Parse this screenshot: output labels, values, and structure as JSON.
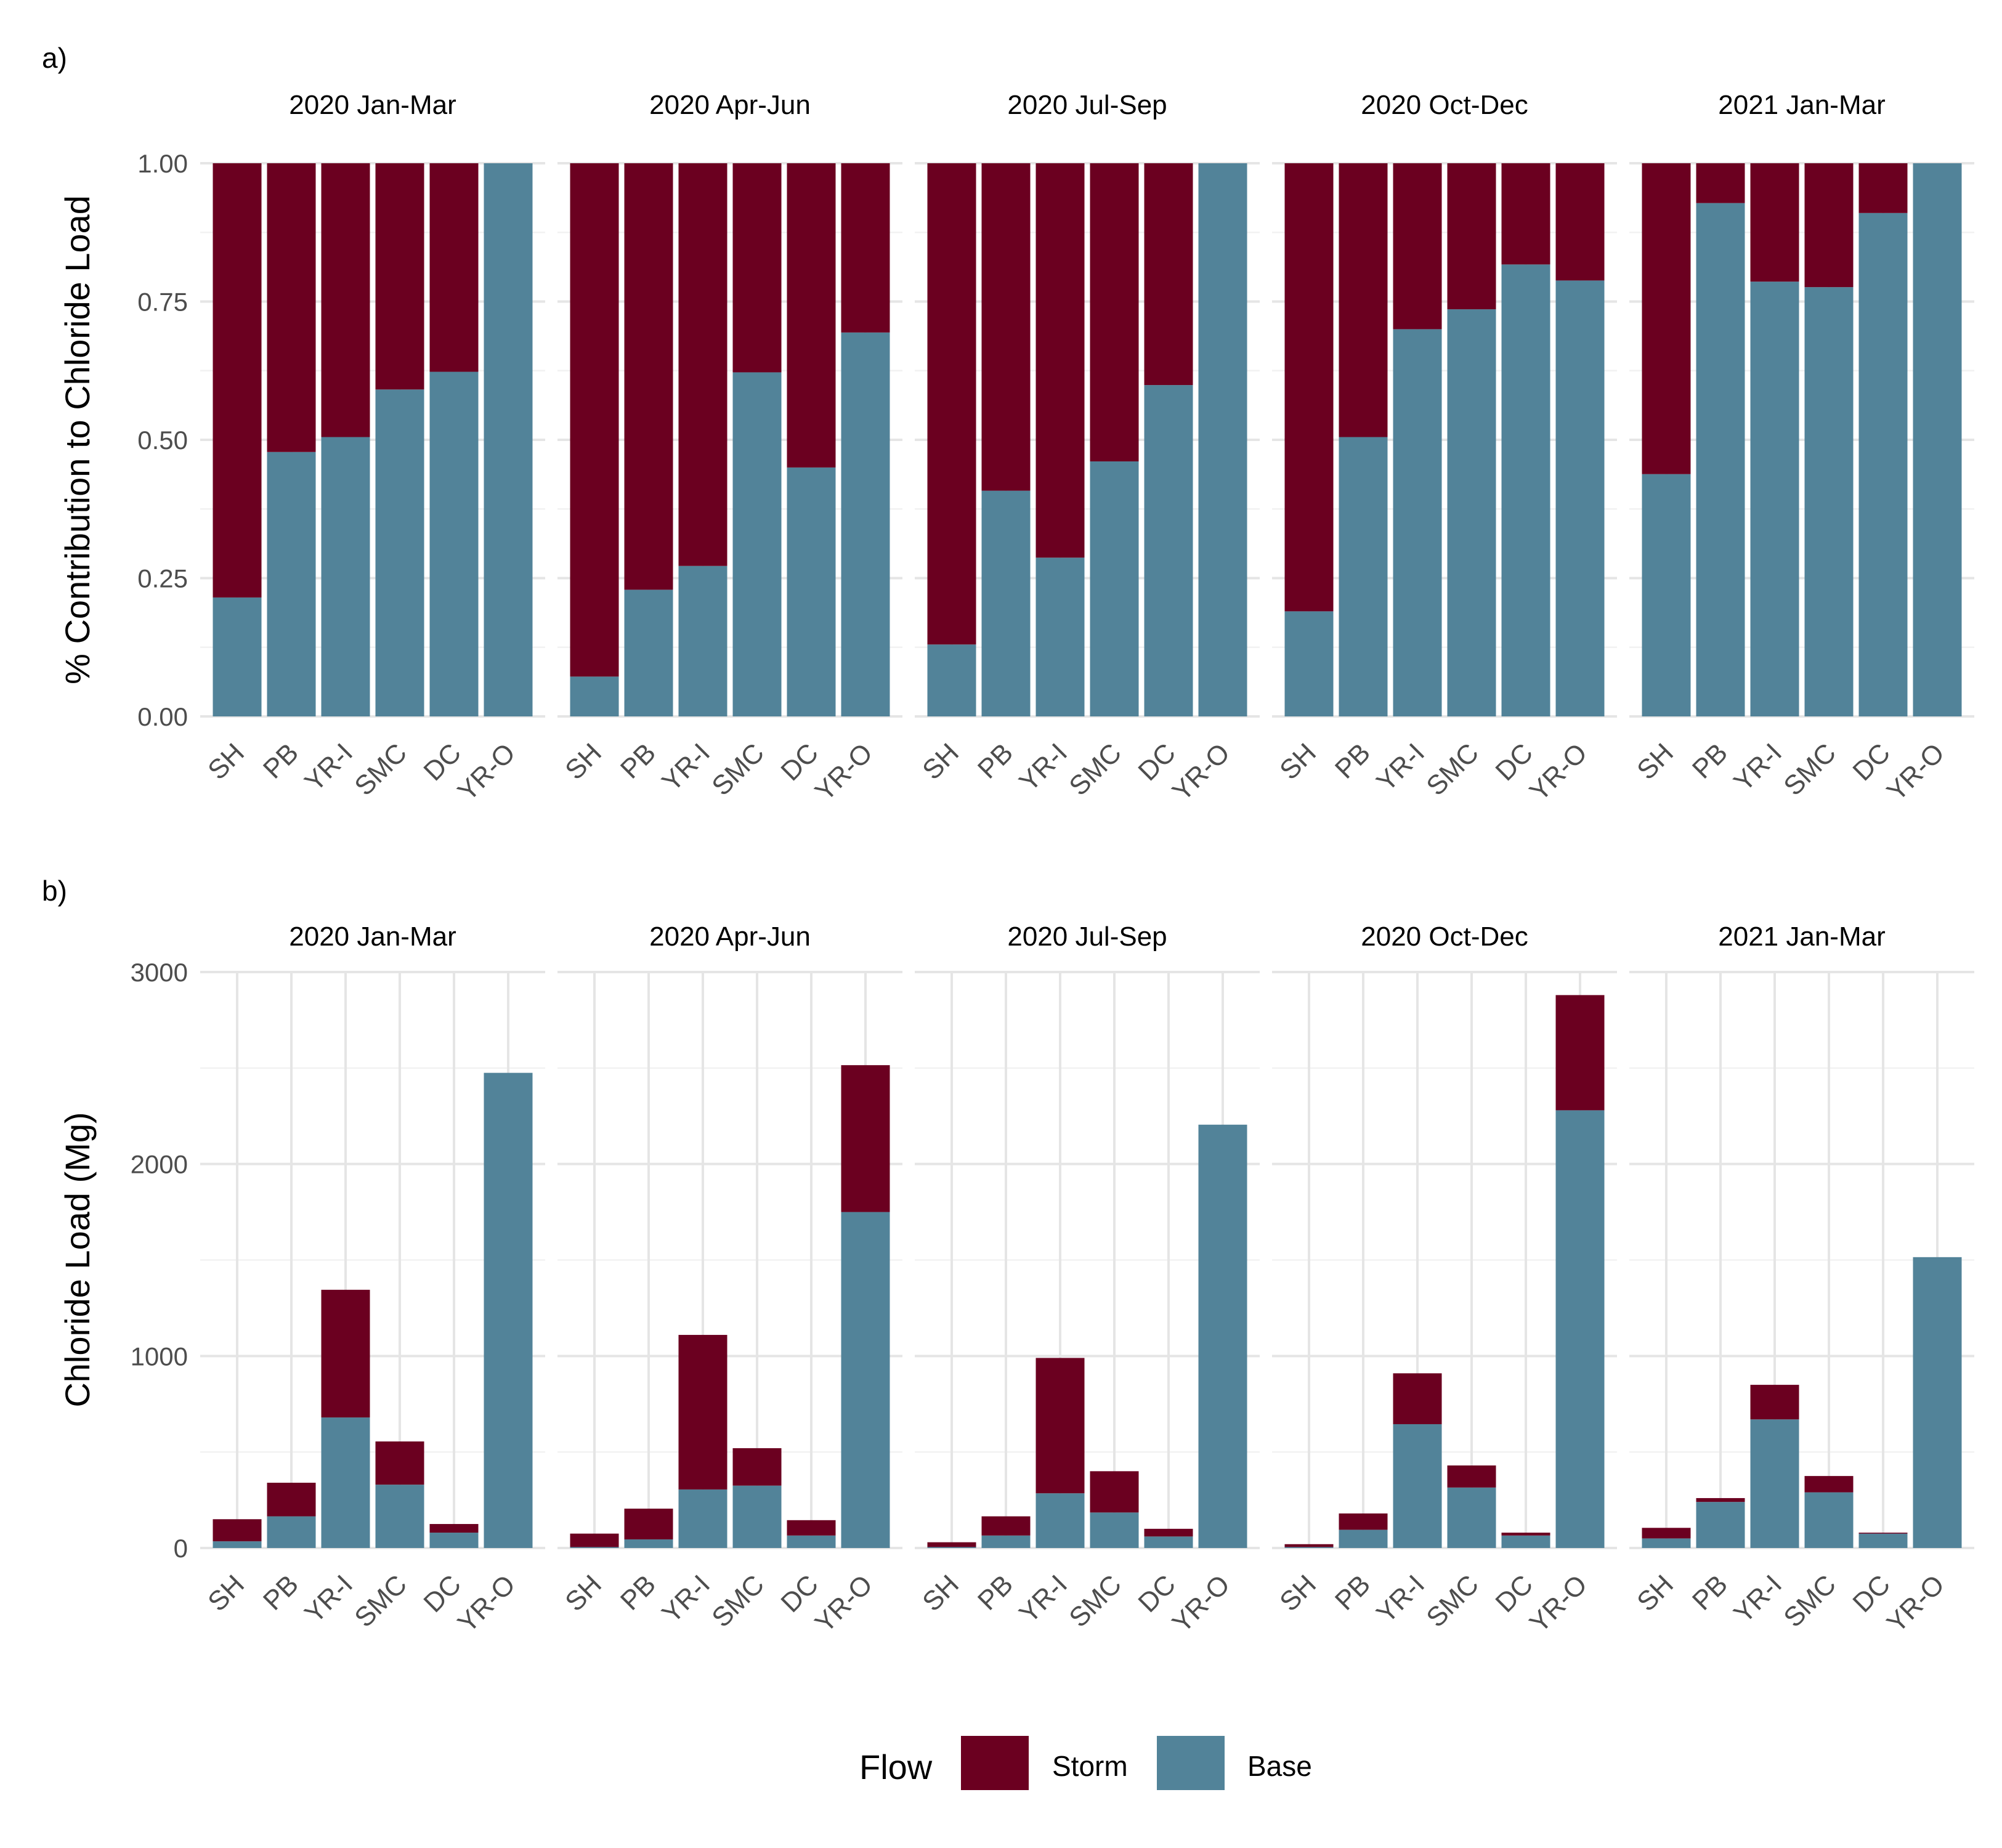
{
  "colors": {
    "storm": "#6B0020",
    "base": "#528399",
    "grid_major": "#E5E5E5",
    "grid_minor": "#F2F2F2",
    "text": "#000000",
    "tick_text": "#4D4D4D"
  },
  "legend": {
    "title": "Flow",
    "items": [
      {
        "label": "Storm",
        "color_key": "storm"
      },
      {
        "label": "Base",
        "color_key": "base"
      }
    ]
  },
  "chart_data": [
    {
      "type": "bar",
      "stacked": true,
      "panel_label": "a)",
      "ylabel": "% Contribution to Chloride Load",
      "ylim": [
        0,
        1
      ],
      "yticks": [
        0,
        0.25,
        0.5,
        0.75,
        1
      ],
      "ytick_labels": [
        "0.00",
        "0.25",
        "0.50",
        "0.75",
        "1.00"
      ],
      "categories": [
        "SH",
        "PB",
        "YR-I",
        "SMC",
        "DC",
        "YR-O"
      ],
      "facets": [
        {
          "title": "2020 Jan-Mar",
          "base": [
            0.215,
            0.478,
            0.505,
            0.591,
            0.623,
            1.0
          ],
          "storm": [
            0.785,
            0.522,
            0.495,
            0.409,
            0.377,
            0.0
          ]
        },
        {
          "title": "2020 Apr-Jun",
          "base": [
            0.072,
            0.229,
            0.272,
            0.622,
            0.45,
            0.694
          ],
          "storm": [
            0.928,
            0.771,
            0.728,
            0.378,
            0.55,
            0.306
          ]
        },
        {
          "title": "2020 Jul-Sep",
          "base": [
            0.13,
            0.408,
            0.287,
            0.461,
            0.599,
            1.0
          ],
          "storm": [
            0.87,
            0.592,
            0.713,
            0.539,
            0.401,
            0.0
          ]
        },
        {
          "title": "2020 Oct-Dec",
          "base": [
            0.19,
            0.505,
            0.7,
            0.736,
            0.817,
            0.788
          ],
          "storm": [
            0.81,
            0.495,
            0.3,
            0.264,
            0.183,
            0.212
          ]
        },
        {
          "title": "2021 Jan-Mar",
          "base": [
            0.438,
            0.928,
            0.786,
            0.776,
            0.91,
            1.0
          ],
          "storm": [
            0.562,
            0.072,
            0.214,
            0.224,
            0.09,
            0.0
          ]
        }
      ]
    },
    {
      "type": "bar",
      "stacked": true,
      "panel_label": "b)",
      "ylabel": "Chloride Load (Mg)",
      "ylim": [
        0,
        3000
      ],
      "yticks": [
        0,
        1000,
        2000,
        3000
      ],
      "ytick_labels": [
        "0",
        "1000",
        "2000",
        "3000"
      ],
      "categories": [
        "SH",
        "PB",
        "YR-I",
        "SMC",
        "DC",
        "YR-O"
      ],
      "facets": [
        {
          "title": "2020 Jan-Mar",
          "base": [
            35,
            165,
            680,
            330,
            80,
            2475
          ],
          "storm": [
            115,
            175,
            665,
            225,
            45,
            0
          ]
        },
        {
          "title": "2020 Apr-Jun",
          "base": [
            5,
            45,
            305,
            325,
            65,
            1750
          ],
          "storm": [
            70,
            160,
            805,
            195,
            80,
            765
          ]
        },
        {
          "title": "2020 Jul-Sep",
          "base": [
            5,
            65,
            285,
            185,
            60,
            2205
          ],
          "storm": [
            25,
            100,
            705,
            215,
            40,
            0
          ]
        },
        {
          "title": "2020 Oct-Dec",
          "base": [
            5,
            95,
            645,
            315,
            65,
            2280
          ],
          "storm": [
            15,
            85,
            265,
            115,
            15,
            600
          ]
        },
        {
          "title": "2021 Jan-Mar",
          "base": [
            50,
            240,
            670,
            290,
            75,
            1515
          ],
          "storm": [
            55,
            20,
            180,
            85,
            5,
            0
          ]
        }
      ]
    }
  ]
}
